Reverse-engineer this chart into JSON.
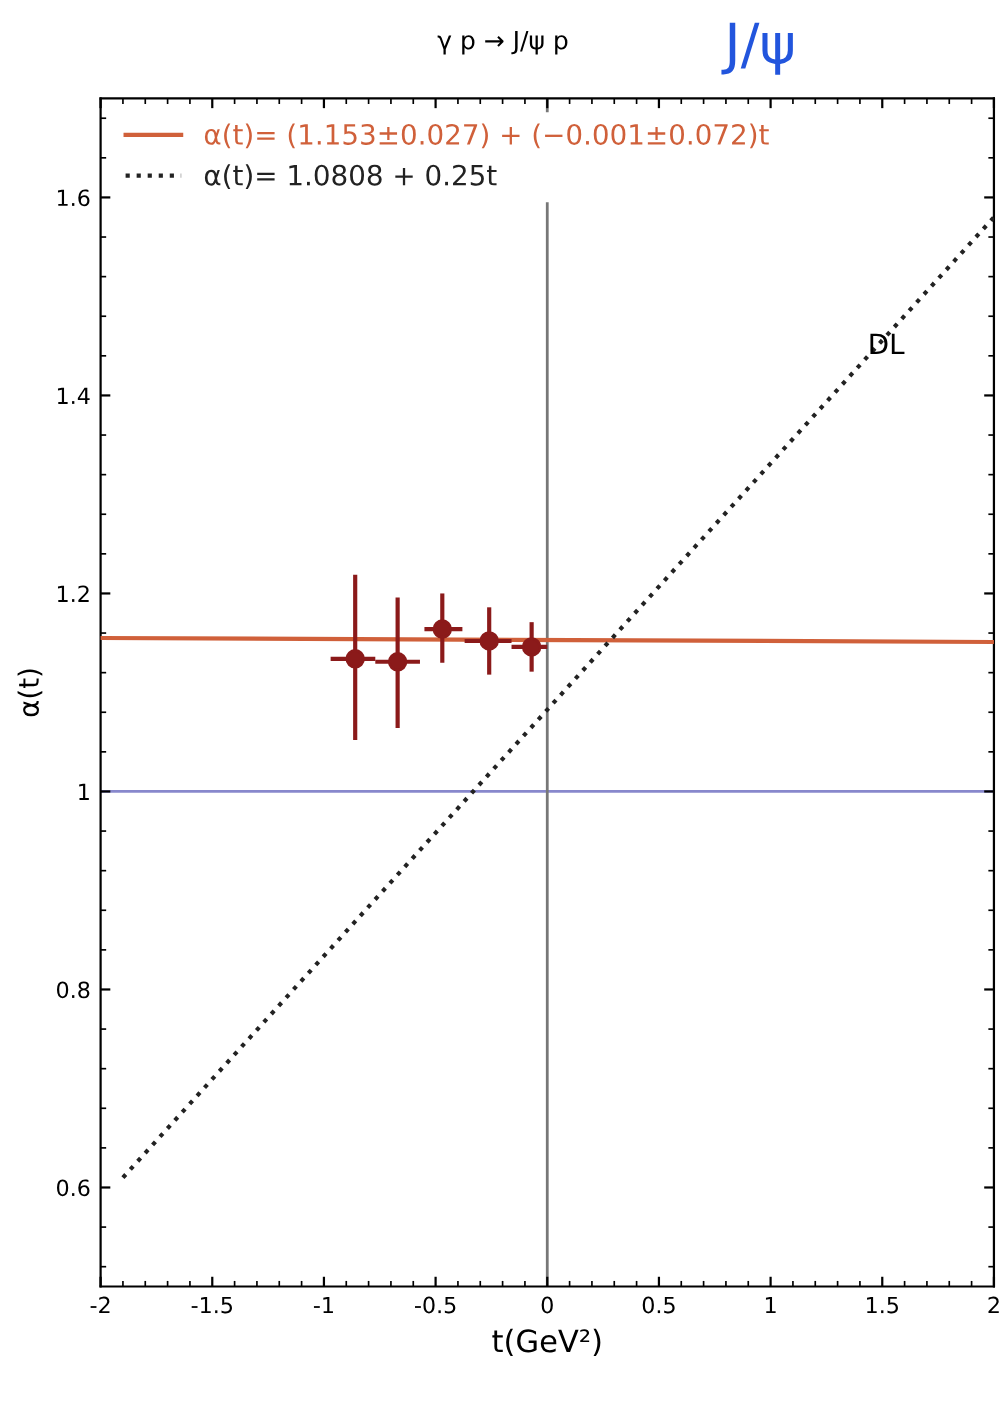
{
  "chart_data": {
    "type": "scatter",
    "title": "γ p → J/ψ p",
    "xlabel": "t(GeV²)",
    "ylabel": "α(t)",
    "xlim": [
      -2,
      2
    ],
    "ylim": [
      0.5,
      1.7
    ],
    "xticks": [
      -2,
      -1.5,
      -1,
      -0.5,
      0,
      0.5,
      1,
      1.5,
      2
    ],
    "yticks": [
      0.6,
      0.8,
      1,
      1.2,
      1.4,
      1.6
    ],
    "grid": false,
    "legend": "top left",
    "series": [
      {
        "marker": "circle",
        "color": "#8b1a1a",
        "x": [
          -0.86,
          -0.67,
          -0.47,
          -0.26,
          -0.07
        ],
        "values": [
          1.134,
          1.131,
          1.164,
          1.152,
          1.146
        ],
        "errors": [
          [
            1.052,
            1.219
          ],
          [
            1.064,
            1.196
          ],
          [
            1.13,
            1.2
          ],
          [
            1.118,
            1.186
          ],
          [
            1.121,
            1.171
          ]
        ],
        "xerrors": [
          [
            -0.97,
            -0.77
          ],
          [
            -0.77,
            -0.57
          ],
          [
            -0.55,
            -0.38
          ],
          [
            -0.37,
            -0.16
          ],
          [
            -0.16,
            0.0
          ]
        ]
      },
      {
        "type": "line",
        "name": "α(t)= (1.153±0.027) + (−0.001±0.072)t",
        "color": "#d0603a",
        "line_style": "solid",
        "x": [
          -2,
          2
        ],
        "values": [
          1.155,
          1.151
        ]
      },
      {
        "type": "line",
        "name": "α(t)= 1.0808 + 0.25t",
        "color": "#222222",
        "line_style": "dotted",
        "x": [
          -1.9,
          2
        ],
        "values": [
          0.61,
          1.58
        ]
      }
    ],
    "ref_lines": [
      {
        "axis": "y",
        "value": 1,
        "color": "#8888cc"
      },
      {
        "axis": "x",
        "value": 0,
        "color": "#777777"
      }
    ],
    "annotations": [
      "DL",
      "J/ψ"
    ]
  }
}
